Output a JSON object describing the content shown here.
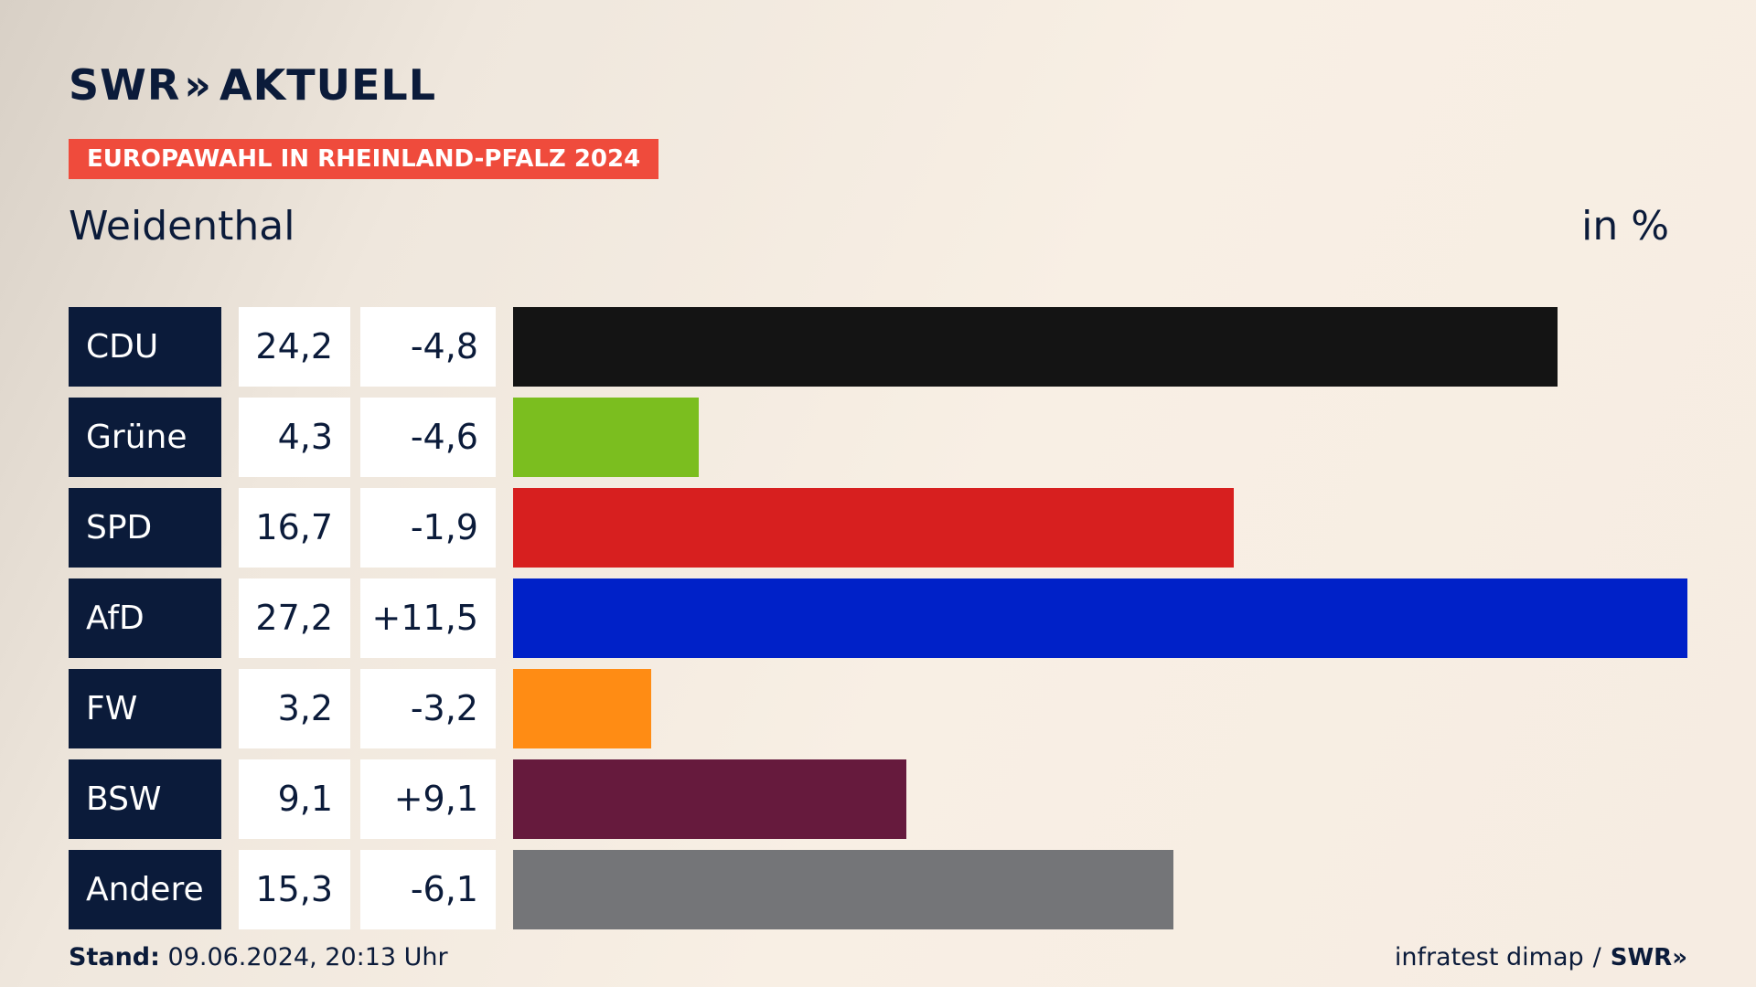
{
  "header": {
    "logo_brand": "SWR",
    "logo_chevrons": "»",
    "logo_product": "AKTUELL",
    "tag": "EUROPAWAHL IN RHEINLAND-PFALZ 2024",
    "place": "Weidenthal",
    "unit": "in %"
  },
  "chart_data": {
    "type": "bar",
    "orientation": "horizontal",
    "title": "EUROPAWAHL IN RHEINLAND-PFALZ 2024",
    "subtitle": "Weidenthal",
    "unit": "in %",
    "categories": [
      "CDU",
      "Grüne",
      "SPD",
      "AfD",
      "FW",
      "BSW",
      "Andere"
    ],
    "values": [
      24.2,
      4.3,
      16.7,
      27.2,
      3.2,
      9.1,
      15.3
    ],
    "values_label": [
      "24,2",
      "4,3",
      "16,7",
      "27,2",
      "3,2",
      "9,1",
      "15,3"
    ],
    "diff_label": [
      "-4,8",
      "-4,6",
      "-1,9",
      "+11,5",
      "-3,2",
      "+9,1",
      "-6,1"
    ],
    "colors": [
      "#141414",
      "#7bbe1f",
      "#d71f1f",
      "#0021c8",
      "#ff8c14",
      "#661a3d",
      "#747578"
    ],
    "xlim": [
      0,
      27.2
    ]
  },
  "footer": {
    "stand_label": "Stand:",
    "stand_value": "09.06.2024, 20:13 Uhr",
    "source": "infratest dimap",
    "separator": "/",
    "brand": "SWR»"
  }
}
